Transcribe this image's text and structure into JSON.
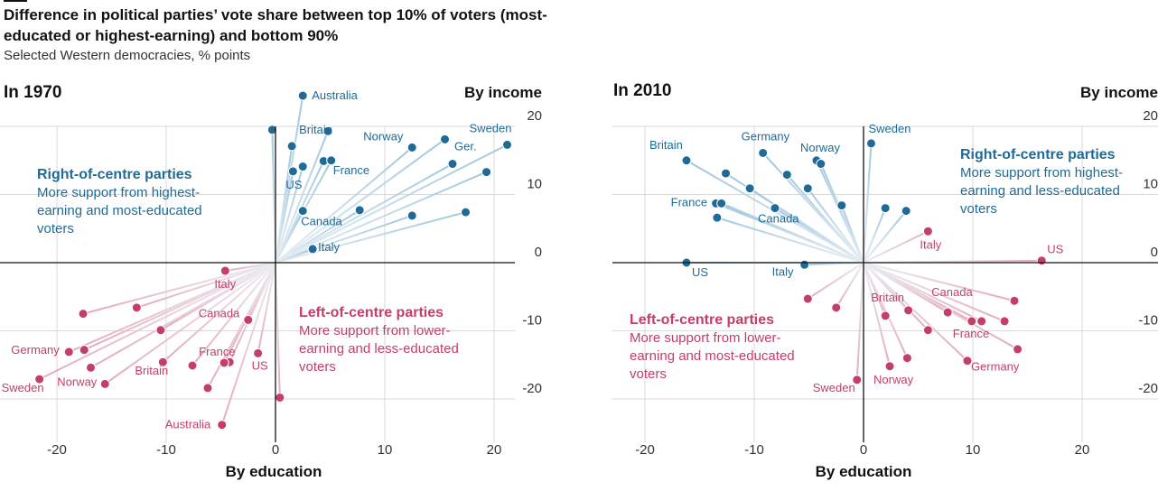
{
  "header": {
    "title": "Difference in political parties’ vote share between top 10% of voters (most-educated or highest-earning) and bottom 90%",
    "subtitle": "Selected Western democracies, % points"
  },
  "colors": {
    "right": "#1f6b96",
    "left": "#c53e66",
    "right_fan": "#9ec6de",
    "left_fan": "#e6a8bd",
    "grid": "#dadada",
    "axis": "#121212"
  },
  "chart_data": [
    {
      "type": "scatter",
      "title": "In 1970",
      "xlabel": "By education",
      "ylabel": "By income",
      "xlim": [
        -25,
        22
      ],
      "ylim": [
        -28,
        24
      ],
      "xticks": [
        -20,
        -10,
        0,
        10,
        20
      ],
      "yticks": [
        20,
        10,
        0,
        -10,
        -20
      ],
      "grid": true,
      "groups": {
        "right": {
          "title": "Right-of-centre parties",
          "lines": [
            "More support from highest-",
            "earning and most-educated",
            "voters"
          ]
        },
        "left": {
          "title": "Left-of-centre parties",
          "lines": [
            "More support from lower-",
            "earning and less-educated",
            "voters"
          ]
        }
      },
      "series": [
        {
          "name": "Right-of-centre parties",
          "points": [
            {
              "x": 2.5,
              "y": 24.5,
              "label": "Australia"
            },
            {
              "x": -0.3,
              "y": 19.5
            },
            {
              "x": 4.8,
              "y": 19.3
            },
            {
              "x": 1.5,
              "y": 17.1,
              "label": "Britain"
            },
            {
              "x": 12.5,
              "y": 16.9,
              "label": "Norway"
            },
            {
              "x": 15.5,
              "y": 18.1
            },
            {
              "x": 21.2,
              "y": 17.3,
              "label": "Sweden"
            },
            {
              "x": 16.2,
              "y": 14.5,
              "label": "Ger."
            },
            {
              "x": 19.3,
              "y": 13.3
            },
            {
              "x": 4.4,
              "y": 14.9
            },
            {
              "x": 5.1,
              "y": 15.0,
              "label": "France"
            },
            {
              "x": 2.5,
              "y": 14.1
            },
            {
              "x": 1.6,
              "y": 13.4,
              "label": "US"
            },
            {
              "x": 2.5,
              "y": 7.6,
              "label": "Canada"
            },
            {
              "x": 7.7,
              "y": 7.7
            },
            {
              "x": 12.5,
              "y": 6.9
            },
            {
              "x": 17.4,
              "y": 7.4
            },
            {
              "x": 3.4,
              "y": 2.0,
              "label": "Italy"
            }
          ]
        },
        {
          "name": "Left-of-centre parties",
          "points": [
            {
              "x": -4.6,
              "y": -1.2,
              "label": "Italy"
            },
            {
              "x": -12.7,
              "y": -6.6
            },
            {
              "x": -17.6,
              "y": -7.5
            },
            {
              "x": -10.5,
              "y": -9.9
            },
            {
              "x": -2.5,
              "y": -8.4,
              "label": "Canada"
            },
            {
              "x": -18.9,
              "y": -13.1,
              "label": "Germany"
            },
            {
              "x": -17.5,
              "y": -12.8
            },
            {
              "x": -21.6,
              "y": -17.1,
              "label": "Sweden"
            },
            {
              "x": -16.9,
              "y": -15.4
            },
            {
              "x": -15.6,
              "y": -17.8,
              "label": "Norway"
            },
            {
              "x": -10.3,
              "y": -14.6,
              "label": "Britain"
            },
            {
              "x": -7.6,
              "y": -15.1
            },
            {
              "x": -4.2,
              "y": -14.6
            },
            {
              "x": -4.7,
              "y": -14.7,
              "label": "France"
            },
            {
              "x": -6.2,
              "y": -18.4
            },
            {
              "x": -1.6,
              "y": -13.3,
              "label": "US"
            },
            {
              "x": 0.4,
              "y": -19.8
            },
            {
              "x": -4.9,
              "y": -23.8,
              "label": "Australia"
            }
          ]
        }
      ]
    },
    {
      "type": "scatter",
      "title": "In 2010",
      "xlabel": "By education",
      "ylabel": "By income",
      "xlim": [
        -23,
        27
      ],
      "ylim": [
        -28,
        24
      ],
      "xticks": [
        -20,
        -10,
        0,
        10,
        20
      ],
      "yticks": [
        20,
        10,
        0,
        -10,
        -20
      ],
      "grid": true,
      "groups": {
        "right": {
          "title": "Right-of-centre parties",
          "lines": [
            "More support from highest-",
            "earning and less-educated",
            "voters"
          ]
        },
        "left": {
          "title": "Left-of-centre parties",
          "lines": [
            "More support from lower-",
            "earning and most-educated",
            "voters"
          ]
        }
      },
      "series": [
        {
          "name": "Right-of-centre parties",
          "points": [
            {
              "x": 0.7,
              "y": 17.5,
              "label": "Sweden"
            },
            {
              "x": -9.2,
              "y": 16.1,
              "label": "Germany"
            },
            {
              "x": -4.3,
              "y": 15.0,
              "label": "Norway"
            },
            {
              "x": -16.2,
              "y": 15.0,
              "label": "Britain"
            },
            {
              "x": -3.9,
              "y": 14.5
            },
            {
              "x": -12.6,
              "y": 13.1
            },
            {
              "x": -7.0,
              "y": 12.9
            },
            {
              "x": -10.4,
              "y": 10.9
            },
            {
              "x": -5.1,
              "y": 10.9
            },
            {
              "x": -2.0,
              "y": 8.4
            },
            {
              "x": -13.5,
              "y": 8.7,
              "label": "France"
            },
            {
              "x": -13.0,
              "y": 8.7
            },
            {
              "x": -8.1,
              "y": 8.0,
              "label": "Canada"
            },
            {
              "x": -13.4,
              "y": 6.6
            },
            {
              "x": 2.0,
              "y": 8.0
            },
            {
              "x": 3.9,
              "y": 7.6
            },
            {
              "x": -16.2,
              "y": 0.0,
              "label": "US"
            },
            {
              "x": -5.4,
              "y": -0.3,
              "label": "Italy"
            }
          ]
        },
        {
          "name": "Left-of-centre parties",
          "points": [
            {
              "x": 5.9,
              "y": 4.6,
              "label": "Italy"
            },
            {
              "x": 16.3,
              "y": 0.3,
              "label": "US"
            },
            {
              "x": 13.8,
              "y": -5.6
            },
            {
              "x": 7.7,
              "y": -7.3,
              "label": "Canada"
            },
            {
              "x": 9.9,
              "y": -8.6,
              "label": "France"
            },
            {
              "x": 10.8,
              "y": -8.6
            },
            {
              "x": 12.9,
              "y": -8.6
            },
            {
              "x": 2.0,
              "y": -7.8,
              "label": "Britain"
            },
            {
              "x": 4.1,
              "y": -7.0
            },
            {
              "x": 5.9,
              "y": -9.9
            },
            {
              "x": -5.1,
              "y": -5.3
            },
            {
              "x": -2.5,
              "y": -6.6
            },
            {
              "x": 14.1,
              "y": -12.7
            },
            {
              "x": 9.5,
              "y": -14.4,
              "label": "Germany"
            },
            {
              "x": 4.0,
              "y": -14.0
            },
            {
              "x": 2.4,
              "y": -15.2,
              "label": "Norway"
            },
            {
              "x": -0.6,
              "y": -17.2,
              "label": "Sweden"
            }
          ]
        }
      ]
    }
  ]
}
